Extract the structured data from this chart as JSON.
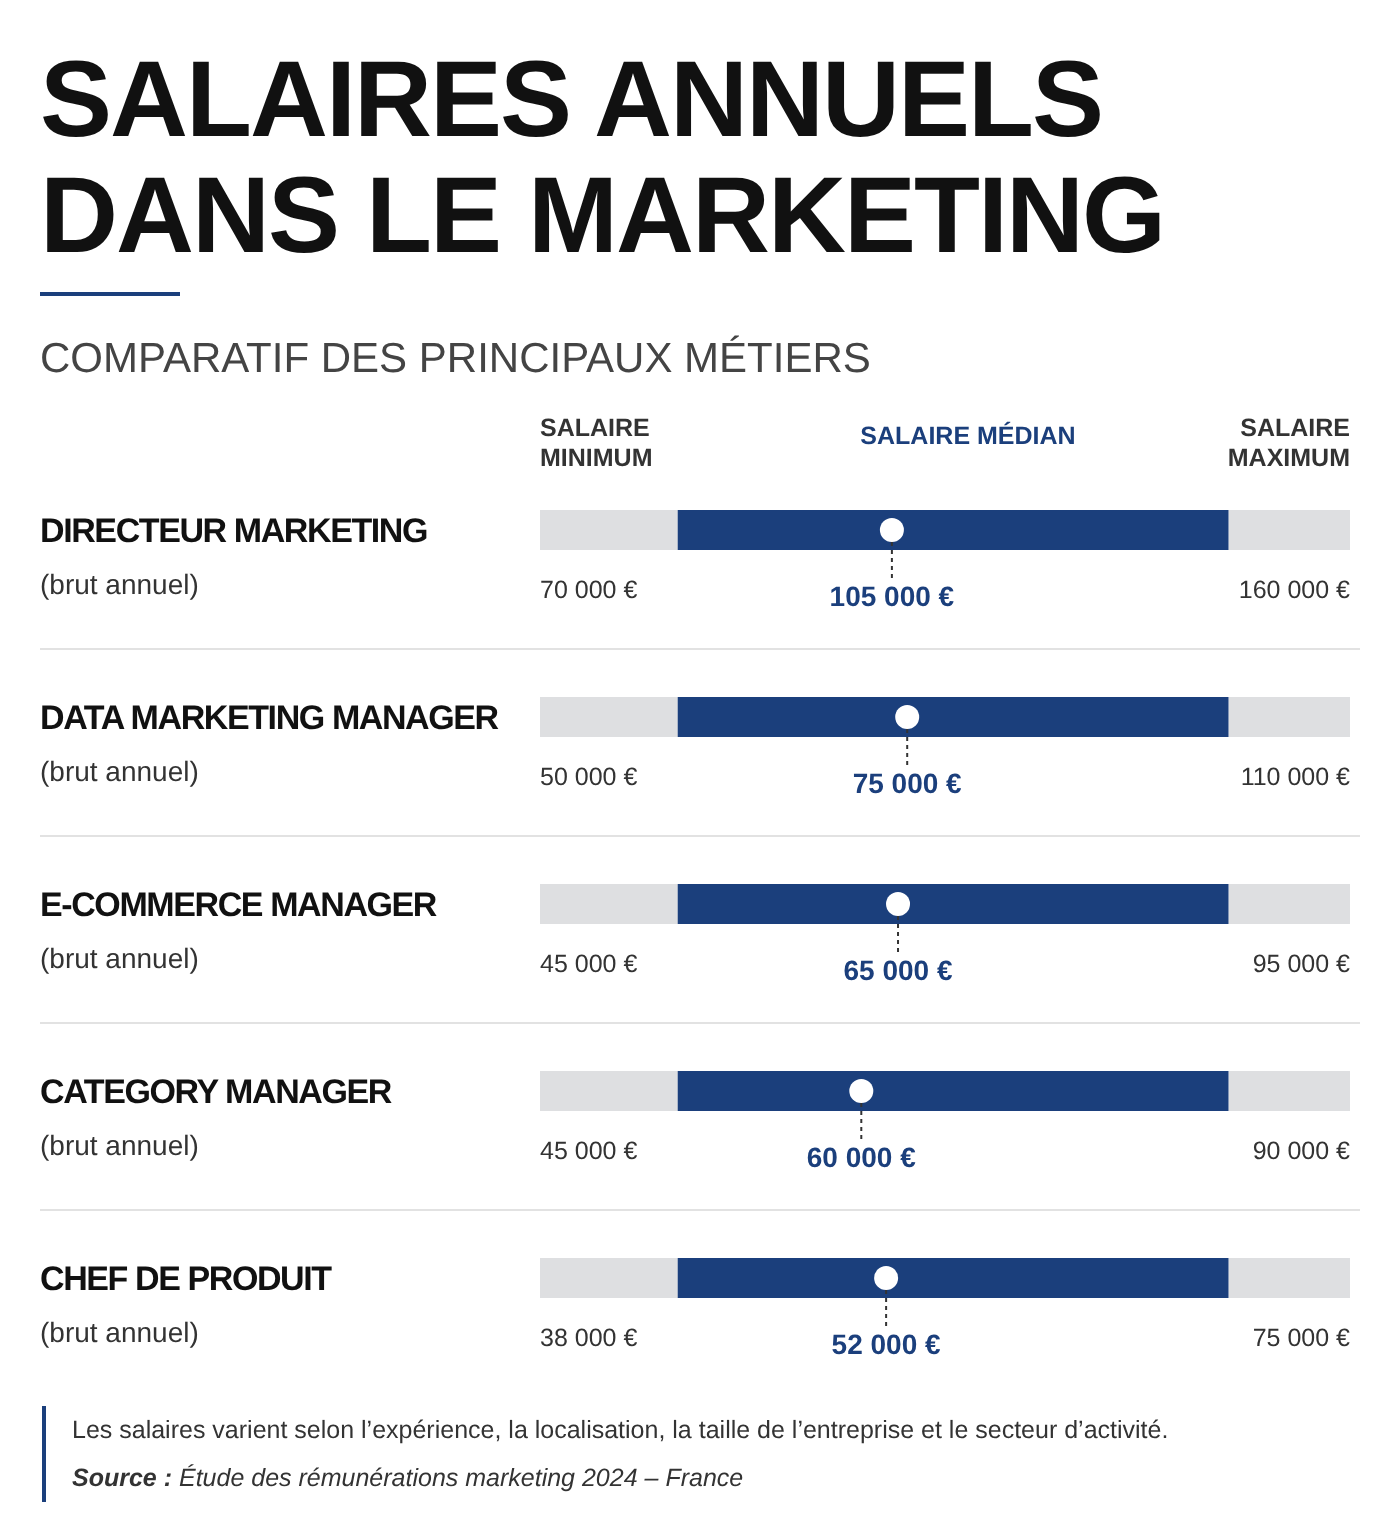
{
  "chart_data": {
    "type": "other",
    "title": "SALAIRES ANNUELS\nDANS LE MARKETING",
    "subtitle": "COMPARATIF DES PRINCIPAUX MÉTIERS",
    "categories": [
      "DIRECTEUR MARKETING\n(brut annuel)",
      "DATA MARKETING MANAGER\n(brut annuel)",
      "E-COMMERCE MANAGER\n(brut annuel)",
      "CATEGORY MANAGER\n(brut annuel)",
      "CHEF DE PRODUIT\n(brut annuel)"
    ],
    "series": [
      {
        "name": "SALAIRE\nMINIMUM",
        "values": [
          70000,
          50000,
          45000,
          45000,
          38000
        ],
        "value_labels": [
          "70 000 €",
          "50 000 €",
          "45 000 €",
          "45 000 €",
          "38 000 €"
        ]
      },
      {
        "name": "SALAIRE MÉDIAN",
        "color": "#1b3f7c",
        "values": [
          105000,
          75000,
          65000,
          60000,
          52000
        ],
        "value_labels": [
          "105 000 €",
          "75 000 €",
          "65 000 €",
          "60 000 €",
          "52 000 €"
        ]
      },
      {
        "name": "SALAIRE\nMAXIMUM",
        "values": [
          160000,
          110000,
          95000,
          90000,
          75000
        ],
        "value_labels": [
          "160 000 €",
          "110 000 €",
          "95 000 €",
          "90 000 €",
          "75 000 €"
        ]
      }
    ],
    "annotations": [
      "Les salaires varient selon l’expérience, la localisation, la taille de l’entreprise et le secteur d’activité.",
      "Source : Étude des rémunérations marketing 2024 – France"
    ]
  }
}
